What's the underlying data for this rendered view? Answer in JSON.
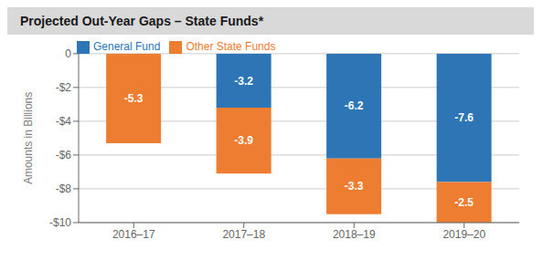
{
  "chart_data": {
    "type": "bar",
    "title": "Projected Out-Year Gaps – State Funds*",
    "categories": [
      "2016–17",
      "2017–18",
      "2018–19",
      "2019–20"
    ],
    "series": [
      {
        "name": "General Fund",
        "color": "#2e75b6",
        "values": [
          0.0,
          -3.2,
          -6.2,
          -7.6
        ]
      },
      {
        "name": "Other State Funds",
        "color": "#ed7d31",
        "values": [
          -5.3,
          -3.9,
          -3.3,
          -2.5
        ]
      }
    ],
    "ylabel": "Amounts in Billions",
    "ylim": [
      -10,
      0
    ],
    "yticks": [
      0,
      {
        "value": -2,
        "label": "-$2"
      },
      {
        "value": -4,
        "label": "-$4"
      },
      {
        "value": -6,
        "label": "-$6"
      },
      {
        "value": -8,
        "label": "-$8"
      },
      {
        "value": -10,
        "label": "-$10"
      }
    ],
    "stacked": true,
    "grid": true,
    "legend": "top",
    "data_labels": true
  }
}
